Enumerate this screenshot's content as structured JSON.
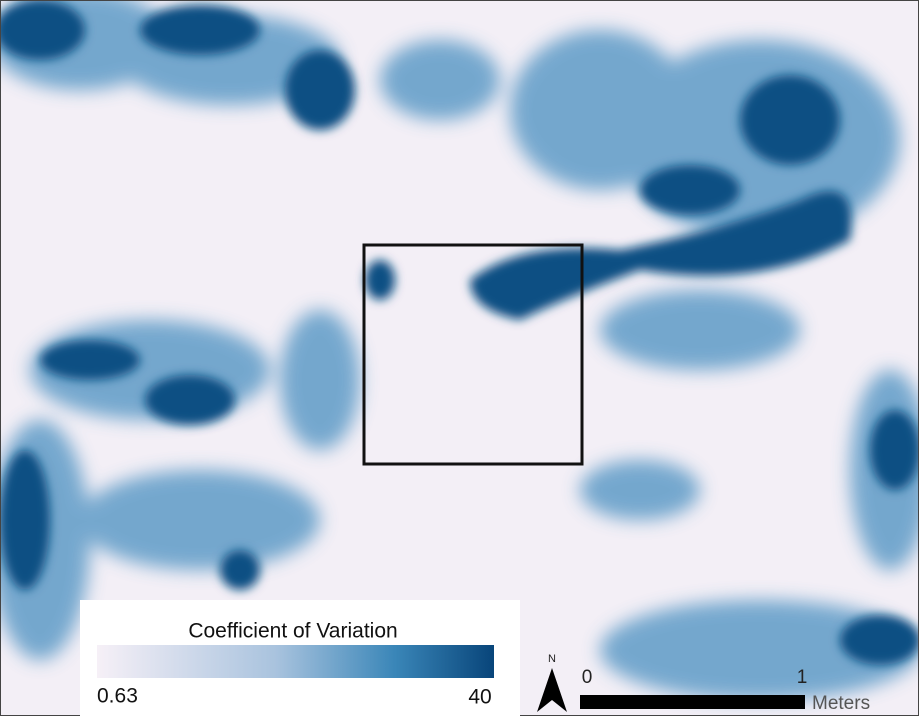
{
  "legend": {
    "title": "Coefficient of Variation",
    "min": 0.63,
    "max": 40
  },
  "north_arrow": {
    "label": "N"
  },
  "scale_bar": {
    "start": 0,
    "end": 1,
    "unit": "Meters"
  }
}
